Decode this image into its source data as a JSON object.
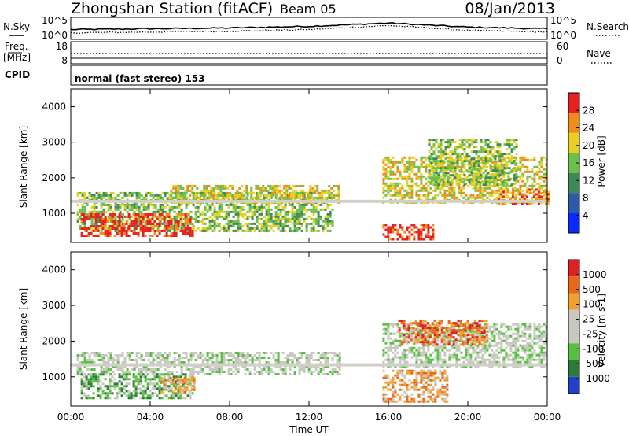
{
  "header": {
    "station": "Zhongshan Station (fitACF)",
    "beam": "Beam 05",
    "date": "08/Jan/2013"
  },
  "top_panel": {
    "left_label": "N.Sky",
    "left_ticks": [
      "10^5",
      "10^0"
    ],
    "right_label": "N.Search",
    "right_ticks": [
      "10^5",
      "10^0"
    ]
  },
  "freq_panel": {
    "left_label": "Freq.",
    "left_unit": "[MHz]",
    "left_ticks": [
      "18",
      "8"
    ],
    "right_label": "Nave",
    "right_ticks": [
      "60",
      "0"
    ]
  },
  "cpid_panel": {
    "label": "CPID",
    "text": "normal (fast stereo) 153"
  },
  "x_axis": {
    "ticks": [
      "00:00",
      "04:00",
      "08:00",
      "12:00",
      "16:00",
      "20:00",
      "00:00"
    ],
    "label": "Time UT"
  },
  "power_panel": {
    "ylabel": "Slant Range [km]",
    "yticks": [
      "4000",
      "3000",
      "2000",
      "1000"
    ],
    "colorbar_label": "Power [dB]",
    "colorbar_ticks": [
      "28",
      "24",
      "20",
      "16",
      "12",
      "8",
      "4"
    ],
    "colors": [
      "#0a2bff",
      "#2d5aa8",
      "#3d8a56",
      "#6cc04a",
      "#e8d020",
      "#f08c18",
      "#e82020"
    ]
  },
  "velocity_panel": {
    "ylabel": "Slant Range [km]",
    "yticks": [
      "4000",
      "3000",
      "2000",
      "1000"
    ],
    "colorbar_label": "Velocity [m s-1]",
    "colorbar_ticks": [
      "1000",
      "500",
      "100",
      "25",
      "-25",
      "-100",
      "-500",
      "-1000"
    ],
    "colors": [
      "#2040c8",
      "#2e7a3a",
      "#58c040",
      "#c8c8c0",
      "#c8c8c0",
      "#f0a030",
      "#e86818",
      "#e02020"
    ]
  },
  "chart_data": [
    {
      "type": "line",
      "title": "N.Sky / N.Search",
      "x": [
        "00:00",
        "04:00",
        "08:00",
        "12:00",
        "16:00",
        "20:00",
        "00:00"
      ],
      "series": [
        {
          "name": "N.Sky",
          "values": [
            2.2,
            2.4,
            2.6,
            3.0,
            3.8,
            2.8,
            2.4
          ]
        },
        {
          "name": "N.Search",
          "values": [
            1.4,
            1.6,
            1.8,
            2.2,
            3.2,
            2.0,
            1.6
          ]
        }
      ],
      "ylim": [
        0,
        5
      ]
    },
    {
      "type": "line",
      "title": "Freq. / Nave",
      "x": [
        "00:00",
        "04:00",
        "08:00",
        "12:00",
        "16:00",
        "20:00",
        "00:00"
      ],
      "series": [
        {
          "name": "Freq.",
          "values": [
            12,
            12,
            12,
            12,
            12,
            12,
            12
          ]
        },
        {
          "name": "Nave",
          "values": [
            10,
            10,
            10,
            10,
            10,
            10,
            10
          ]
        }
      ],
      "ylim": [
        8,
        18
      ]
    },
    {
      "type": "heatmap",
      "title": "Power [dB]",
      "xlabel": "Time UT",
      "ylabel": "Slant Range [km]",
      "x_range_hours": [
        0,
        24
      ],
      "ylim": [
        180,
        4500
      ],
      "value_range": [
        0,
        30
      ],
      "regions": [
        {
          "t0": 0.3,
          "t1": 13.2,
          "r0": 500,
          "r1": 1600,
          "level": 3
        },
        {
          "t0": 0.5,
          "t1": 6.2,
          "r0": 400,
          "r1": 1000,
          "level": 6
        },
        {
          "t0": 5.0,
          "t1": 13.5,
          "r0": 1300,
          "r1": 1800,
          "level": 4
        },
        {
          "t0": 15.7,
          "t1": 24.0,
          "r0": 1300,
          "r1": 2600,
          "level": 4
        },
        {
          "t0": 15.7,
          "t1": 18.3,
          "r0": 300,
          "r1": 700,
          "level": 6
        },
        {
          "t0": 18.0,
          "t1": 22.5,
          "r0": 1800,
          "r1": 3100,
          "level": 3
        },
        {
          "t0": 21.5,
          "t1": 24.0,
          "r0": 1300,
          "r1": 1700,
          "level": 5
        }
      ]
    },
    {
      "type": "heatmap",
      "title": "Velocity [m s-1]",
      "xlabel": "Time UT",
      "ylabel": "Slant Range [km]",
      "x_range_hours": [
        0,
        24
      ],
      "ylim": [
        180,
        4500
      ],
      "value_range": [
        -1000,
        1000
      ],
      "regions": [
        {
          "t0": 0.3,
          "t1": 13.5,
          "r0": 1100,
          "r1": 1700,
          "level": 3
        },
        {
          "t0": 0.5,
          "t1": 6.2,
          "r0": 400,
          "r1": 1100,
          "level": 2
        },
        {
          "t0": 4.5,
          "t1": 6.2,
          "r0": 600,
          "r1": 1000,
          "level": 5
        },
        {
          "t0": 15.7,
          "t1": 24.0,
          "r0": 1300,
          "r1": 2500,
          "level": 3
        },
        {
          "t0": 15.7,
          "t1": 19.0,
          "r0": 300,
          "r1": 1200,
          "level": 5
        },
        {
          "t0": 16.5,
          "t1": 21.0,
          "r0": 1900,
          "r1": 2600,
          "level": 6
        }
      ]
    }
  ]
}
